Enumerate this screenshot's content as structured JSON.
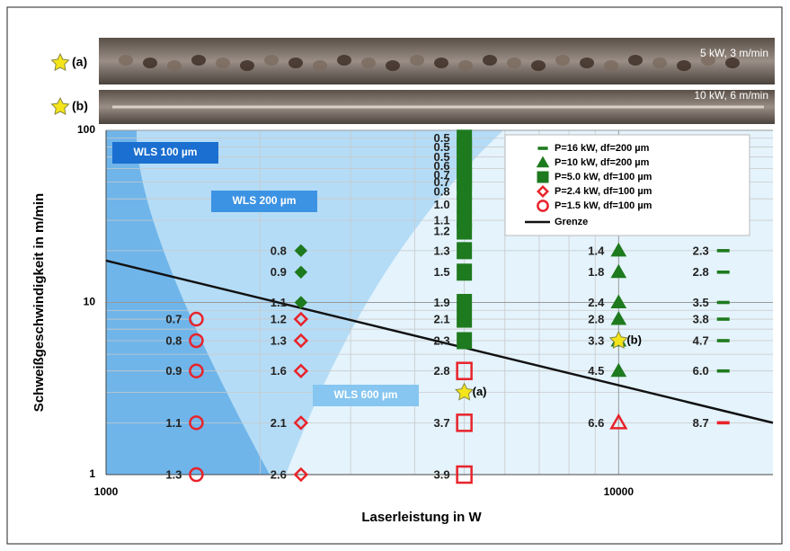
{
  "chart_data": {
    "type": "scatter",
    "xlabel": "Laserleistung in W",
    "ylabel": "Schweißgeschwindigkeit in m/min",
    "xscale": "log",
    "yscale": "log",
    "xlim": [
      1000,
      20000
    ],
    "ylim": [
      1,
      100
    ],
    "xticks": [
      1000,
      10000
    ],
    "yticks": [
      1,
      10,
      100
    ],
    "grid": true,
    "minor_grid": true,
    "legend": "upper right",
    "series": [
      {
        "name": "P=16 kW, df=200 µm",
        "marker": "dash",
        "color": "#1e7a1e",
        "x": [
          16000,
          16000,
          16000,
          16000,
          16000,
          16000,
          16000
        ],
        "y": [
          20,
          15,
          10,
          8,
          6,
          4,
          2
        ],
        "labels": [
          "2.3",
          "2.8",
          "3.5",
          "3.8",
          "4.7",
          "6.0",
          "8.7"
        ],
        "colors": [
          "#1e7a1e",
          "#1e7a1e",
          "#1e7a1e",
          "#1e7a1e",
          "#1e7a1e",
          "#1e7a1e",
          "#e8232a"
        ],
        "filled": [
          true,
          true,
          true,
          true,
          true,
          true,
          true
        ]
      },
      {
        "name": "P=10 kW, df=200 µm",
        "marker": "triangle",
        "color": "#1e7a1e",
        "x": [
          10000,
          10000,
          10000,
          10000,
          10000,
          10000,
          10000
        ],
        "y": [
          20,
          15,
          10,
          8,
          6,
          4,
          2
        ],
        "labels": [
          "1.4",
          "1.8",
          "2.4",
          "2.8",
          "3.3",
          "4.5",
          "6.6"
        ],
        "colors": [
          "#1e7a1e",
          "#1e7a1e",
          "#1e7a1e",
          "#1e7a1e",
          "#1e7a1e",
          "#1e7a1e",
          "#e8232a"
        ],
        "filled": [
          true,
          true,
          true,
          true,
          true,
          true,
          false
        ]
      },
      {
        "name": "P=5.0 kW, df=100 µm",
        "marker": "square",
        "color": "#1e7a1e",
        "x": [
          5000,
          5000,
          5000,
          5000,
          5000,
          5000,
          5000,
          5000,
          5000,
          5000,
          5000,
          5000,
          5000,
          5000,
          5000,
          5000,
          5000,
          5000
        ],
        "y": [
          90,
          80,
          70,
          62,
          55,
          50,
          44,
          37,
          30,
          26,
          20,
          15,
          10,
          8,
          6,
          4,
          2,
          1
        ],
        "labels": [
          "0.5",
          "0.5",
          "0.5",
          "0.6",
          "0.7",
          "0.7",
          "0.8",
          "1.0",
          "1.1",
          "1.2",
          "1.3",
          "1.5",
          "1.9",
          "2.1",
          "2.3",
          "2.8",
          "3.7",
          "3.9"
        ],
        "colors": [
          "#1e7a1e",
          "#1e7a1e",
          "#1e7a1e",
          "#1e7a1e",
          "#1e7a1e",
          "#1e7a1e",
          "#1e7a1e",
          "#1e7a1e",
          "#1e7a1e",
          "#1e7a1e",
          "#1e7a1e",
          "#1e7a1e",
          "#1e7a1e",
          "#1e7a1e",
          "#1e7a1e",
          "#e8232a",
          "#e8232a",
          "#e8232a"
        ],
        "filled": [
          true,
          true,
          true,
          true,
          true,
          true,
          true,
          true,
          true,
          true,
          true,
          true,
          true,
          true,
          true,
          false,
          false,
          false
        ]
      },
      {
        "name": "P=2.4 kW, df=100 µm",
        "marker": "diamond",
        "color": "#e8232a",
        "x": [
          2400,
          2400,
          2400,
          2400,
          2400,
          2400,
          2400,
          2400
        ],
        "y": [
          20,
          15,
          10,
          8,
          6,
          4,
          2,
          1
        ],
        "labels": [
          "0.8",
          "0.9",
          "1.1",
          "1.2",
          "1.3",
          "1.6",
          "2.1",
          "2.6"
        ],
        "colors": [
          "#1e7a1e",
          "#1e7a1e",
          "#1e7a1e",
          "#e8232a",
          "#e8232a",
          "#e8232a",
          "#e8232a",
          "#e8232a"
        ],
        "filled": [
          true,
          true,
          true,
          false,
          false,
          false,
          false,
          false
        ]
      },
      {
        "name": "P=1.5 kW, df=100 µm",
        "marker": "circle",
        "color": "#e8232a",
        "x": [
          1500,
          1500,
          1500,
          1500,
          1500
        ],
        "y": [
          8,
          6,
          4,
          2,
          1
        ],
        "labels": [
          "0.7",
          "0.8",
          "0.9",
          "1.1",
          "1.3"
        ],
        "colors": [
          "#e8232a",
          "#e8232a",
          "#e8232a",
          "#e8232a",
          "#e8232a"
        ],
        "filled": [
          false,
          false,
          false,
          false,
          false
        ]
      }
    ],
    "line": {
      "name": "Grenze",
      "color": "#111111",
      "x": [
        1000,
        20000
      ],
      "y": [
        17.5,
        2
      ]
    },
    "regions": [
      "WLS 100 µm",
      "WLS 200 µm",
      "WLS 600 µm"
    ],
    "photos": [
      {
        "tag": "(a)",
        "caption": "5 kW, 3 m/min",
        "x": 5000,
        "y": 3
      },
      {
        "tag": "(b)",
        "caption": "10 kW, 6 m/min",
        "x": 10000,
        "y": 6
      }
    ]
  }
}
